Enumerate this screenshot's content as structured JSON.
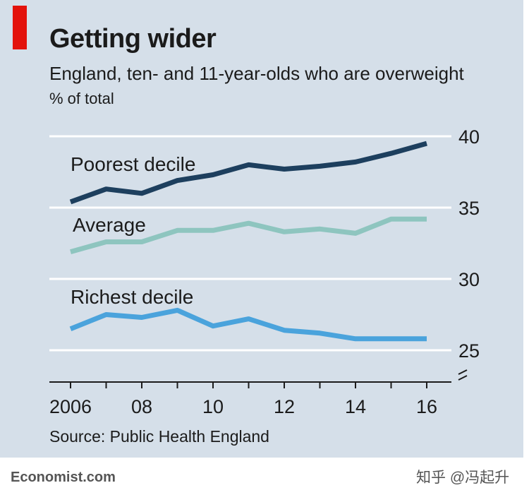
{
  "header": {
    "title": "Getting wider",
    "subtitle": "England, ten- and 11-year-olds who are overweight",
    "unit": "% of total"
  },
  "footer": {
    "source": "Source: Public Health England",
    "brand": "Economist.com",
    "watermark": "知乎 @冯起升"
  },
  "colors": {
    "background": "#d5dfe9",
    "accent": "#e3120b",
    "poorest": "#1d3f5e",
    "average": "#8ec5bf",
    "richest": "#4aa3dc"
  },
  "chart_data": {
    "type": "line",
    "title": "Getting wider",
    "subtitle": "England, ten- and 11-year-olds who are overweight",
    "ylabel": "% of total",
    "x": [
      2006,
      2007,
      2008,
      2009,
      2010,
      2011,
      2012,
      2013,
      2014,
      2015,
      2016
    ],
    "xtick_values": [
      2006,
      2008,
      2010,
      2012,
      2014,
      2016
    ],
    "xtick_labels": [
      "2006",
      "08",
      "10",
      "12",
      "14",
      "16"
    ],
    "ytick_values": [
      25,
      30,
      35,
      40
    ],
    "ytick_labels": [
      "25",
      "30",
      "35",
      "40"
    ],
    "ylim": [
      25,
      40
    ],
    "grid": true,
    "broken_axis": true,
    "series": [
      {
        "name": "Poorest decile",
        "color": "#1d3f5e",
        "values": [
          35.4,
          36.3,
          36.0,
          36.9,
          37.3,
          38.0,
          37.7,
          37.9,
          38.2,
          38.8,
          39.5
        ]
      },
      {
        "name": "Average",
        "color": "#8ec5bf",
        "values": [
          31.9,
          32.6,
          32.6,
          33.4,
          33.4,
          33.9,
          33.3,
          33.5,
          33.2,
          34.2,
          34.2
        ]
      },
      {
        "name": "Richest decile",
        "color": "#4aa3dc",
        "values": [
          26.5,
          27.5,
          27.3,
          27.8,
          26.7,
          27.2,
          26.4,
          26.2,
          25.8,
          25.8,
          25.8
        ]
      }
    ]
  }
}
